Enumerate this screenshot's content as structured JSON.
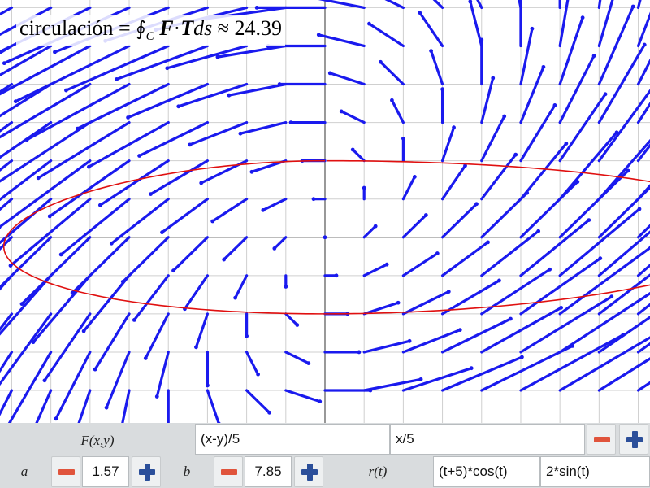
{
  "plot": {
    "formula": {
      "prefix": "circulación = ",
      "integral": "∮",
      "subscript": "C",
      "F": "F",
      "dot": "·",
      "T": "T",
      "ds": "ds",
      "approx": " ≈ ",
      "value": "24.39"
    },
    "x_range": [
      -8.3,
      8.3
    ],
    "y_range": [
      -4.85,
      6.2
    ],
    "grid": true,
    "colors": {
      "vectors": "#1a1aee",
      "curve": "#e01010",
      "grid": "#cfcfcf",
      "axes": "#555555"
    }
  },
  "panel": {
    "field_label": "F(x,y)",
    "fx": "(x-y)/5",
    "fy": "x/5",
    "a_label": "a",
    "a_value": "1.57",
    "b_label": "b",
    "b_value": "7.85",
    "r_label": "r(t)",
    "rx": "(t+5)*cos(t)",
    "ry": "2*sin(t)"
  }
}
